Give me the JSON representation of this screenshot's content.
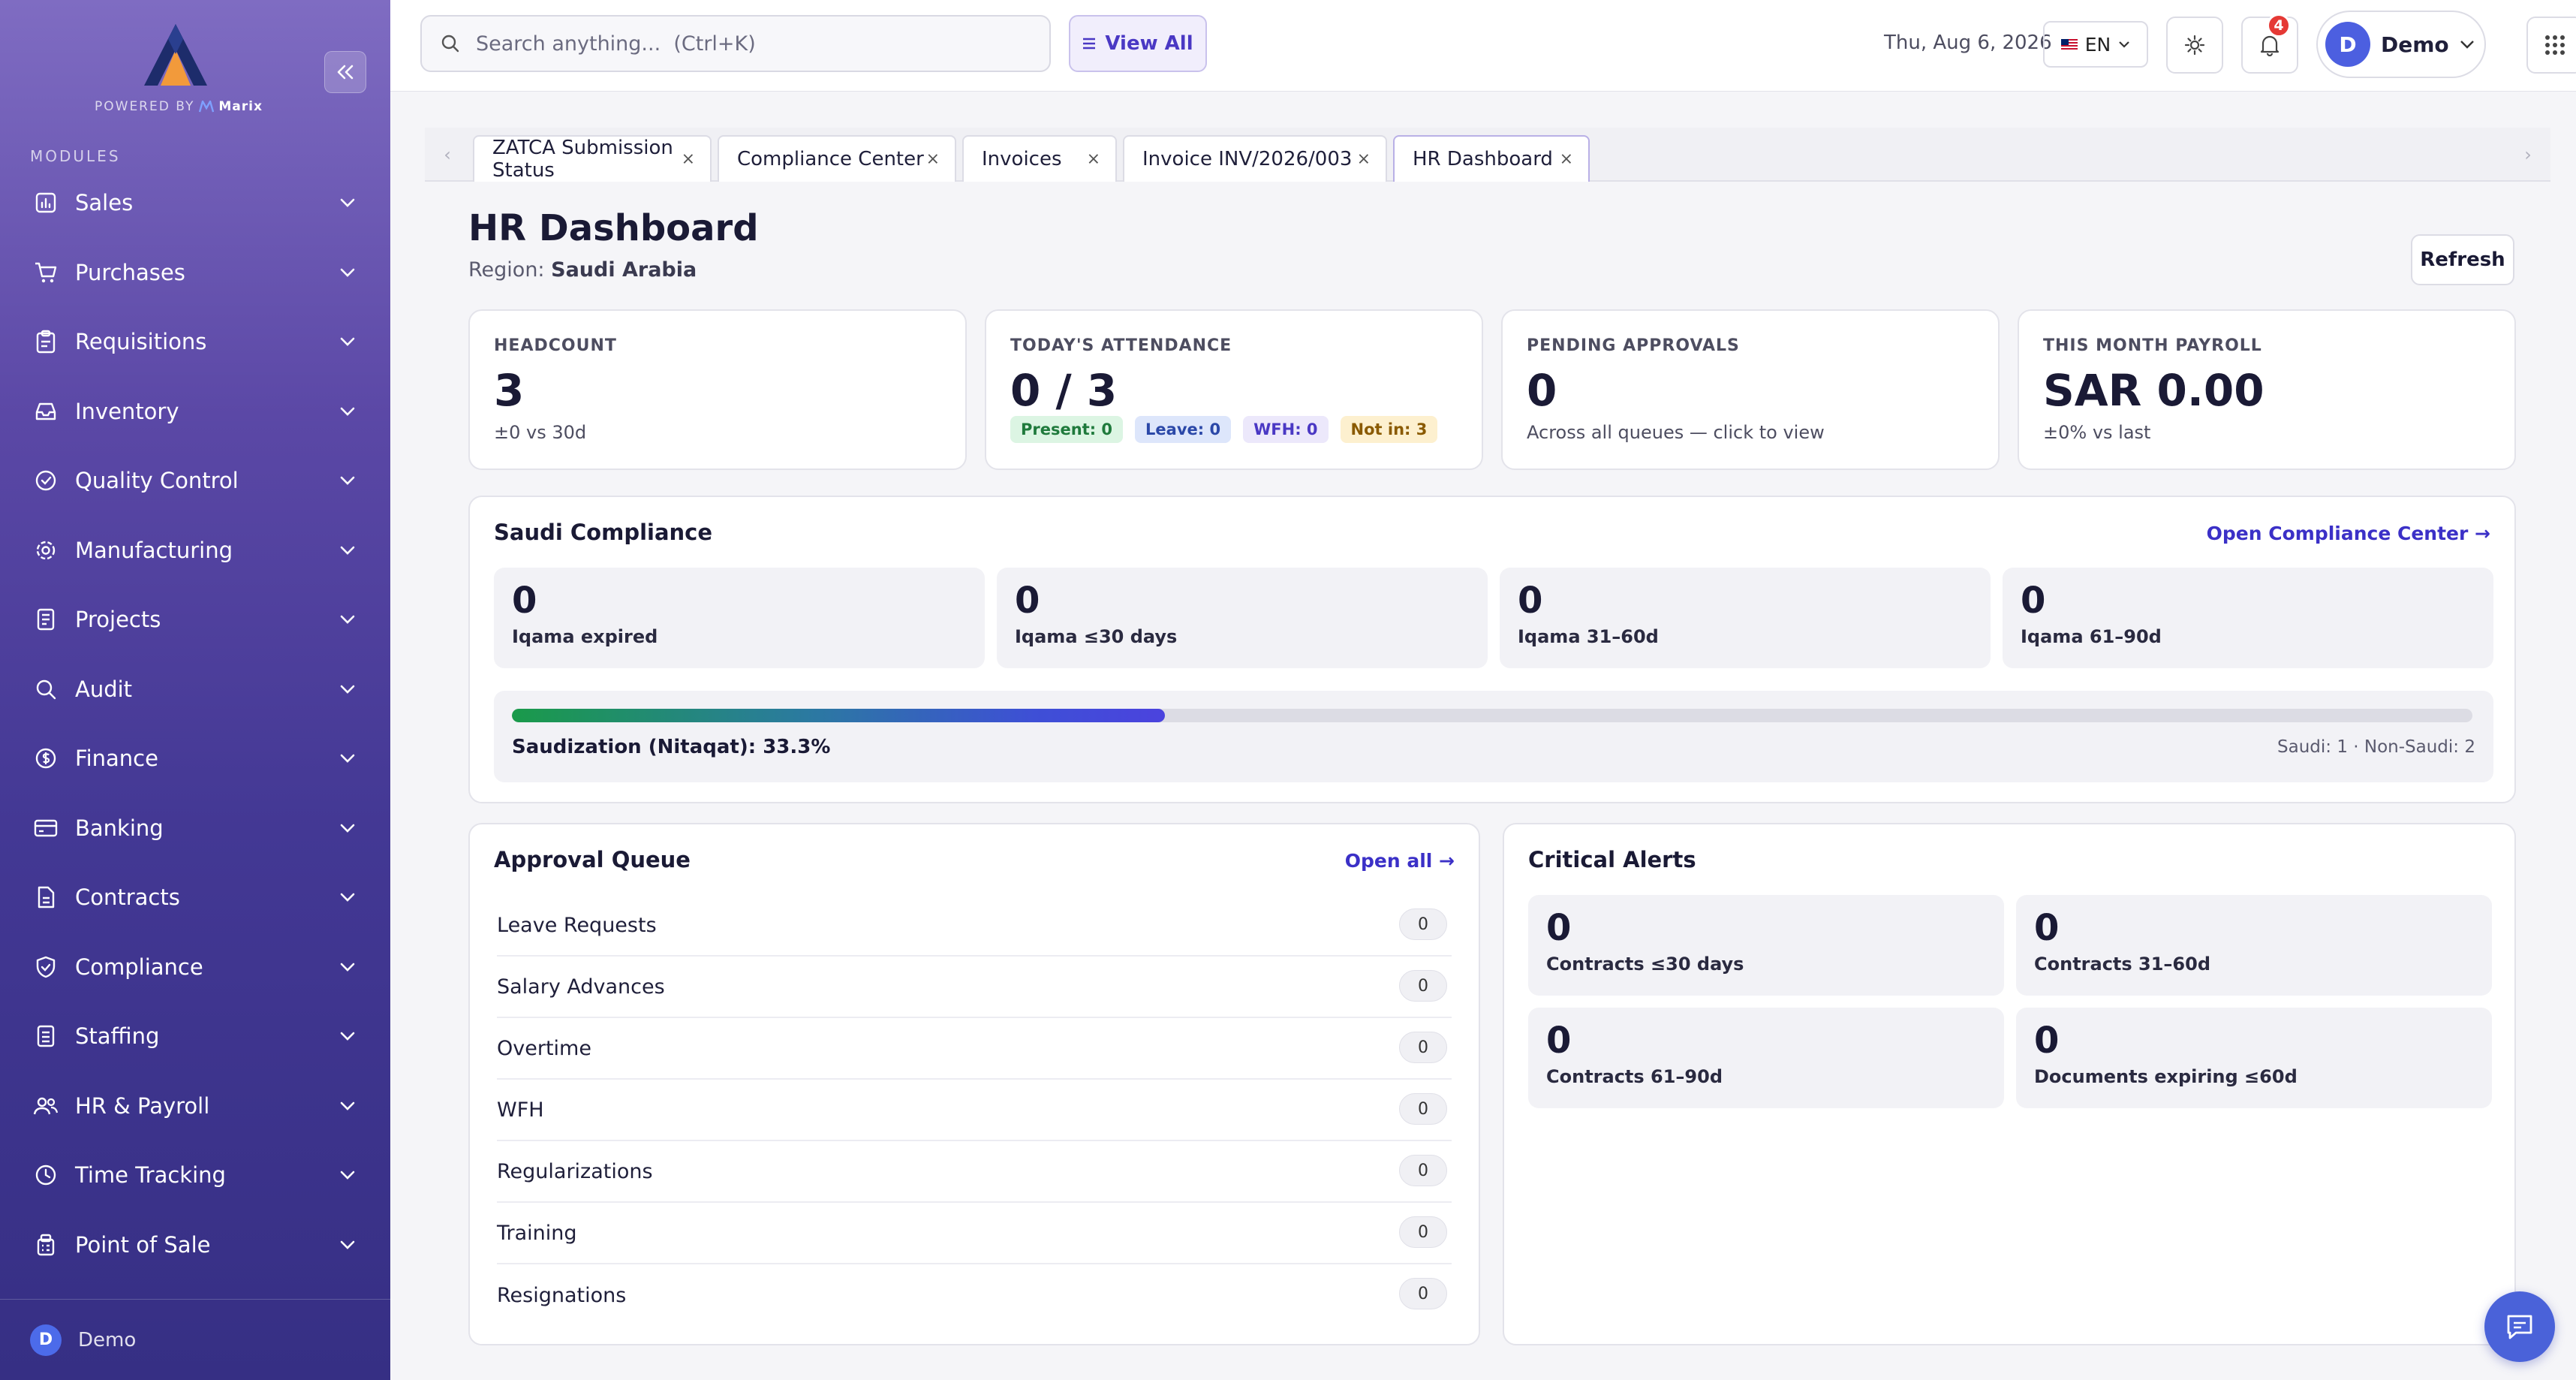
{
  "brand": {
    "powered_by": "POWERED BY",
    "partner": "Marix"
  },
  "sidebar": {
    "section_label": "MODULES",
    "items": [
      {
        "label": "Sales",
        "icon": "chart-icon"
      },
      {
        "label": "Purchases",
        "icon": "cart-icon"
      },
      {
        "label": "Requisitions",
        "icon": "clipboard-icon"
      },
      {
        "label": "Inventory",
        "icon": "inbox-icon"
      },
      {
        "label": "Quality Control",
        "icon": "check-circle-icon"
      },
      {
        "label": "Manufacturing",
        "icon": "gear-icon"
      },
      {
        "label": "Projects",
        "icon": "document-icon"
      },
      {
        "label": "Audit",
        "icon": "search-icon"
      },
      {
        "label": "Finance",
        "icon": "dollar-icon"
      },
      {
        "label": "Banking",
        "icon": "card-icon"
      },
      {
        "label": "Contracts",
        "icon": "file-icon"
      },
      {
        "label": "Compliance",
        "icon": "shield-icon"
      },
      {
        "label": "Staffing",
        "icon": "file-text-icon"
      },
      {
        "label": "HR & Payroll",
        "icon": "users-icon"
      },
      {
        "label": "Time Tracking",
        "icon": "clock-icon"
      },
      {
        "label": "Point of Sale",
        "icon": "register-icon"
      }
    ],
    "footer": {
      "avatar_initial": "D",
      "user": "Demo"
    }
  },
  "topbar": {
    "search_placeholder": "Search anything...  (Ctrl+K)",
    "view_all": "View All",
    "date": "Thu, Aug 6, 2026",
    "language": "EN",
    "notifications_count": "4",
    "user_initial": "D",
    "user_name": "Demo"
  },
  "tabs": [
    {
      "label": "ZATCA Submission Status",
      "close": "×"
    },
    {
      "label": "Compliance Center",
      "close": "×"
    },
    {
      "label": "Invoices",
      "close": "×"
    },
    {
      "label": "Invoice INV/2026/003",
      "close": "×"
    },
    {
      "label": "HR Dashboard",
      "close": "×"
    }
  ],
  "page": {
    "title": "HR Dashboard",
    "region_label": "Region:",
    "region_value": "Saudi Arabia",
    "refresh": "Refresh"
  },
  "kpis": {
    "headcount": {
      "label": "HEADCOUNT",
      "value": "3",
      "sub": "±0  vs 30d"
    },
    "attendance": {
      "label": "TODAY'S ATTENDANCE",
      "value": "0 / 3",
      "chips": [
        {
          "label": "Present: 0",
          "bg": "#dcf5e3",
          "fg": "#1f7a3c"
        },
        {
          "label": "Leave: 0",
          "bg": "#dde6fb",
          "fg": "#2b48a8"
        },
        {
          "label": "WFH: 0",
          "bg": "#ece8fb",
          "fg": "#4a38c4"
        },
        {
          "label": "Not in: 3",
          "bg": "#fdf0cf",
          "fg": "#8a5a00"
        }
      ]
    },
    "approvals": {
      "label": "PENDING APPROVALS",
      "value": "0",
      "sub": "Across all queues — click to view"
    },
    "payroll": {
      "label": "THIS MONTH PAYROLL",
      "value": "SAR 0.00",
      "sub": "±0%  vs last"
    }
  },
  "compliance": {
    "title": "Saudi Compliance",
    "link": "Open Compliance Center →",
    "tiles": [
      {
        "value": "0",
        "label": "Iqama expired"
      },
      {
        "value": "0",
        "label": "Iqama ≤30 days"
      },
      {
        "value": "0",
        "label": "Iqama 31–60d"
      },
      {
        "value": "0",
        "label": "Iqama 61–90d"
      }
    ],
    "saudization_label": "Saudization (Nitaqat): 33.3%",
    "saudization_percent": 33.3,
    "breakdown": "Saudi: 1 · Non-Saudi: 2"
  },
  "approval_queue": {
    "title": "Approval Queue",
    "link": "Open all →",
    "rows": [
      {
        "label": "Leave Requests",
        "count": "0"
      },
      {
        "label": "Salary Advances",
        "count": "0"
      },
      {
        "label": "Overtime",
        "count": "0"
      },
      {
        "label": "WFH",
        "count": "0"
      },
      {
        "label": "Regularizations",
        "count": "0"
      },
      {
        "label": "Training",
        "count": "0"
      },
      {
        "label": "Resignations",
        "count": "0"
      }
    ]
  },
  "critical_alerts": {
    "title": "Critical Alerts",
    "tiles": [
      {
        "value": "0",
        "label": "Contracts ≤30 days"
      },
      {
        "value": "0",
        "label": "Contracts 31–60d"
      },
      {
        "value": "0",
        "label": "Contracts 61–90d"
      },
      {
        "value": "0",
        "label": "Documents expiring ≤60d"
      }
    ]
  },
  "colors": {
    "accent": "#4a38c4",
    "sidebar_top": "#7f6cc2",
    "sidebar_bottom": "#362f84"
  }
}
